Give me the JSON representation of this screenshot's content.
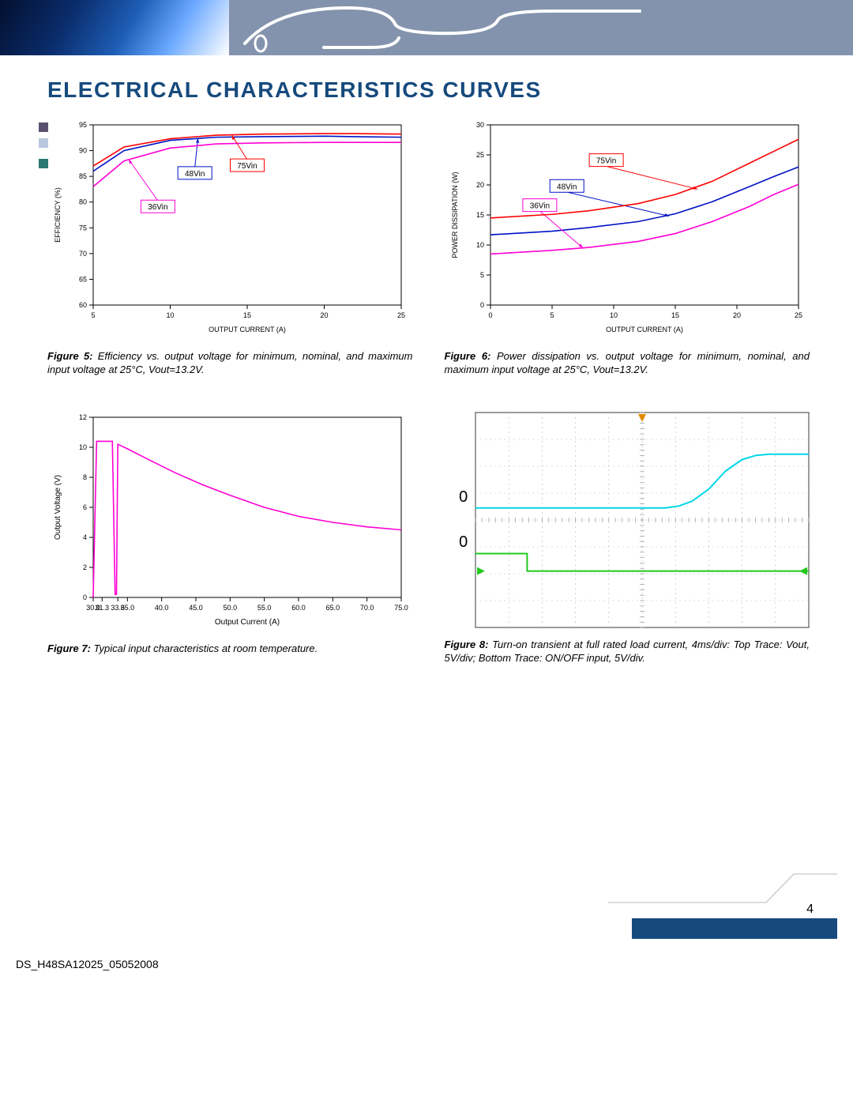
{
  "page": {
    "title": "ELECTRICAL CHARACTERISTICS CURVES",
    "doc_id": "DS_H48SA12025_05052008",
    "page_number": "4"
  },
  "scope_markers": {
    "m1": "0",
    "m2": "0"
  },
  "fig5": {
    "type": "line",
    "title": "",
    "xaxis": {
      "label": "OUTPUT CURRENT (A)",
      "min": 5,
      "max": 25,
      "ticks": [
        5,
        10,
        15,
        20,
        25
      ],
      "label_fontsize": 9
    },
    "yaxis": {
      "label": "EFFICIENCY (%)",
      "min": 60,
      "max": 95,
      "ticks": [
        60,
        65,
        70,
        75,
        80,
        85,
        90,
        95
      ],
      "label_fontsize": 9
    },
    "tick_fontsize": 9,
    "line_width": 1.6,
    "border_color": "#000000",
    "background_color": "#ffffff",
    "series": [
      {
        "name": "48Vin",
        "label": "48Vin",
        "label_box_color": "#0012c6",
        "color": "#0012c6",
        "points": [
          [
            5,
            86
          ],
          [
            7,
            90
          ],
          [
            10,
            92
          ],
          [
            13,
            92.6
          ],
          [
            16,
            92.7
          ],
          [
            20,
            92.8
          ],
          [
            22,
            92.7
          ],
          [
            25,
            92.6
          ]
        ],
        "label_xy": [
          11.6,
          85.5
        ],
        "arrow_to": [
          11.8,
          92.4
        ]
      },
      {
        "name": "36Vin",
        "label": "36Vin",
        "label_box_color": "#ff00d4",
        "color": "#ff00d4",
        "points": [
          [
            5,
            83
          ],
          [
            7,
            88
          ],
          [
            10,
            90.5
          ],
          [
            13,
            91.3
          ],
          [
            16,
            91.5
          ],
          [
            20,
            91.6
          ],
          [
            22,
            91.6
          ],
          [
            25,
            91.6
          ]
        ],
        "label_xy": [
          9.2,
          79
        ],
        "arrow_to": [
          7.3,
          88.3
        ]
      },
      {
        "name": "75Vin",
        "label": "75Vin",
        "label_box_color": "#ff0000",
        "color": "#ff0000",
        "points": [
          [
            5,
            87
          ],
          [
            7,
            90.7
          ],
          [
            10,
            92.3
          ],
          [
            13,
            93.0
          ],
          [
            16,
            93.2
          ],
          [
            20,
            93.3
          ],
          [
            22,
            93.3
          ],
          [
            25,
            93.2
          ]
        ],
        "label_xy": [
          15,
          87
        ],
        "arrow_to": [
          14,
          93.0
        ]
      }
    ],
    "caption_label": "Figure 5:",
    "caption": " Efficiency vs. output voltage for minimum, nominal, and maximum input voltage at 25°C, Vout=13.2V."
  },
  "fig6": {
    "type": "line",
    "xaxis": {
      "label": "OUTPUT CURRENT (A)",
      "min": 0,
      "max": 25,
      "ticks": [
        0,
        5,
        10,
        15,
        20,
        25
      ],
      "label_fontsize": 9
    },
    "yaxis": {
      "label": "POWER DISSIPATION (W)",
      "min": 0,
      "max": 30,
      "ticks": [
        0,
        5,
        10,
        15,
        20,
        25,
        30
      ],
      "label_fontsize": 9
    },
    "tick_fontsize": 9,
    "line_width": 1.6,
    "border_color": "#000000",
    "background_color": "#ffffff",
    "series": [
      {
        "name": "48Vin",
        "label": "48Vin",
        "label_box_color": "#0012c6",
        "color": "#0012c6",
        "points": [
          [
            0,
            11.7
          ],
          [
            5,
            12.3
          ],
          [
            8,
            12.9
          ],
          [
            12,
            13.9
          ],
          [
            15,
            15.2
          ],
          [
            18,
            17.2
          ],
          [
            21,
            19.7
          ],
          [
            23,
            21.4
          ],
          [
            25,
            23
          ]
        ],
        "label_xy": [
          6.2,
          19.7
        ],
        "arrow_to": [
          14.5,
          14.8
        ]
      },
      {
        "name": "36Vin",
        "label": "36Vin",
        "label_box_color": "#ff00d4",
        "color": "#ff00d4",
        "points": [
          [
            0,
            8.5
          ],
          [
            5,
            9.1
          ],
          [
            8,
            9.6
          ],
          [
            12,
            10.6
          ],
          [
            15,
            11.9
          ],
          [
            18,
            13.9
          ],
          [
            21,
            16.4
          ],
          [
            23,
            18.4
          ],
          [
            25,
            20.1
          ]
        ],
        "label_xy": [
          4.0,
          16.5
        ],
        "arrow_to": [
          7.5,
          9.5
        ]
      },
      {
        "name": "75Vin",
        "label": "75Vin",
        "label_box_color": "#ff0000",
        "color": "#ff0000",
        "points": [
          [
            0,
            14.5
          ],
          [
            5,
            15.1
          ],
          [
            8,
            15.7
          ],
          [
            12,
            16.9
          ],
          [
            15,
            18.4
          ],
          [
            18,
            20.6
          ],
          [
            21,
            23.6
          ],
          [
            23,
            25.6
          ],
          [
            25,
            27.6
          ]
        ],
        "label_xy": [
          9.4,
          24
        ],
        "arrow_to": [
          16.8,
          19.3
        ]
      }
    ],
    "caption_label": "Figure 6:",
    "caption": " Power dissipation vs. output voltage for minimum, nominal, and maximum input voltage at 25°C, Vout=13.2V."
  },
  "fig7": {
    "type": "line",
    "xaxis": {
      "label": "Output Current (A)",
      "min": 30,
      "max": 75,
      "ticks": [
        30.0,
        31.3,
        33.6,
        35.0,
        40.0,
        45.0,
        50.0,
        55.0,
        60.0,
        65.0,
        70.0,
        75.0
      ],
      "tick_labels": [
        "30.0",
        "31.3",
        "33.6",
        "35.0",
        "40.0",
        "45.0",
        "50.0",
        "55.0",
        "60.0",
        "65.0",
        "70.0",
        "75.0"
      ],
      "label_fontsize": 10
    },
    "yaxis": {
      "label": "Output Voltage (V)",
      "min": 0,
      "max": 12,
      "ticks": [
        0,
        2,
        4,
        6,
        8,
        10,
        12
      ],
      "label_fontsize": 10
    },
    "tick_fontsize": 9,
    "line_width": 1.6,
    "border_color": "#000000",
    "background_color": "#ffffff",
    "series": [
      {
        "name": "char",
        "label": "",
        "color": "#ff00d4",
        "points": [
          [
            30.0,
            0.0
          ],
          [
            30.5,
            10.4
          ],
          [
            32.8,
            10.4
          ],
          [
            33.2,
            0.2
          ],
          [
            33.4,
            0.2
          ],
          [
            33.6,
            10.2
          ],
          [
            35.0,
            9.9
          ],
          [
            38,
            9.2
          ],
          [
            42,
            8.3
          ],
          [
            46,
            7.5
          ],
          [
            50,
            6.8
          ],
          [
            55,
            6.0
          ],
          [
            60,
            5.4
          ],
          [
            65,
            5.0
          ],
          [
            70,
            4.7
          ],
          [
            75,
            4.5
          ]
        ]
      }
    ],
    "caption_label": "Figure 7:",
    "caption": " Typical input characteristics at room temperature."
  },
  "fig8": {
    "type": "scope",
    "background_color": "#ffffff",
    "grid_color": "#b9b9b9",
    "grid_major": "#9a9a9a",
    "divisions": 10,
    "vdiv": 8,
    "traces": [
      {
        "name": "vout",
        "color": "#00d7e9",
        "width": 2,
        "points": [
          [
            0,
            3.55
          ],
          [
            5.7,
            3.55
          ],
          [
            6.1,
            3.48
          ],
          [
            6.5,
            3.3
          ],
          [
            7.0,
            2.85
          ],
          [
            7.5,
            2.18
          ],
          [
            8.0,
            1.75
          ],
          [
            8.4,
            1.6
          ],
          [
            8.8,
            1.55
          ],
          [
            10,
            1.55
          ]
        ]
      },
      {
        "name": "onoff",
        "color": "#22c81e",
        "width": 2,
        "points": [
          [
            0,
            5.25
          ],
          [
            1.55,
            5.25
          ],
          [
            1.55,
            5.9
          ],
          [
            10,
            5.9
          ]
        ]
      }
    ],
    "marker_color": "#e08b00",
    "caption_label": "Figure 8:",
    "caption": " Turn-on transient at full rated load current, 4ms/div: Top Trace: Vout, 5V/div; Bottom Trace: ON/OFF input, 5V/div."
  },
  "palette": {
    "banner_bg": "#8493ad",
    "title_color": "#164a7d",
    "footer_bar": "#164a7d"
  },
  "sidebar_swatches": [
    "#5a5170",
    "#b9c7df",
    "#2a7a72"
  ]
}
